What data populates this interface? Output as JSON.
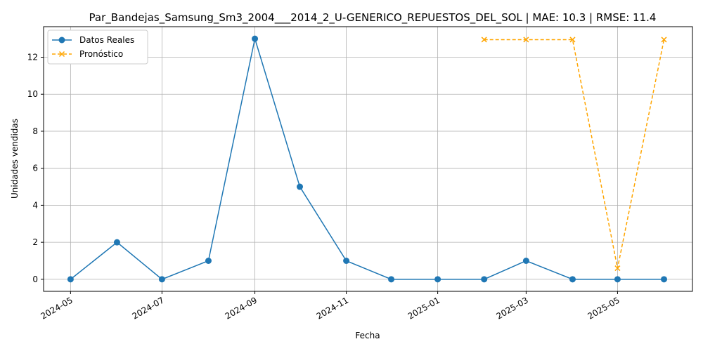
{
  "chart_data": {
    "type": "line",
    "title": "Par_Bandejas_Samsung_Sm3_2004___2014_2_U-GENERICO_REPUESTOS_DEL_SOL | MAE: 10.3 | RMSE: 11.4",
    "xlabel": "Fecha",
    "ylabel": "Unidades vendidas",
    "ylim": [
      -0.65,
      13.65
    ],
    "xlim": [
      "2024-04-13",
      "2025-06-20"
    ],
    "grid": true,
    "legend_position": "top-left",
    "x_ticks": [
      "2024-05",
      "2024-07",
      "2024-09",
      "2024-11",
      "2025-01",
      "2025-03",
      "2025-05"
    ],
    "y_ticks": [
      0,
      2,
      4,
      6,
      8,
      10,
      12
    ],
    "series": [
      {
        "name": "Datos Reales",
        "color": "#1f77b4",
        "marker": "circle",
        "line_style": "solid",
        "x": [
          "2024-05-01",
          "2024-06-01",
          "2024-07-01",
          "2024-08-01",
          "2024-09-01",
          "2024-10-01",
          "2024-11-01",
          "2024-12-01",
          "2025-01-01",
          "2025-02-01",
          "2025-03-01",
          "2025-04-01",
          "2025-05-01",
          "2025-06-01"
        ],
        "values": [
          0,
          2,
          0,
          1,
          13,
          5,
          1,
          0,
          0,
          0,
          1,
          0,
          0,
          0
        ]
      },
      {
        "name": "Pronóstico",
        "color": "#ffa500",
        "marker": "x",
        "line_style": "dashed",
        "x": [
          "2025-02-01",
          "2025-03-01",
          "2025-04-01",
          "2025-05-01",
          "2025-06-01"
        ],
        "values": [
          12.95,
          12.95,
          12.95,
          0.6,
          12.95
        ]
      }
    ]
  }
}
